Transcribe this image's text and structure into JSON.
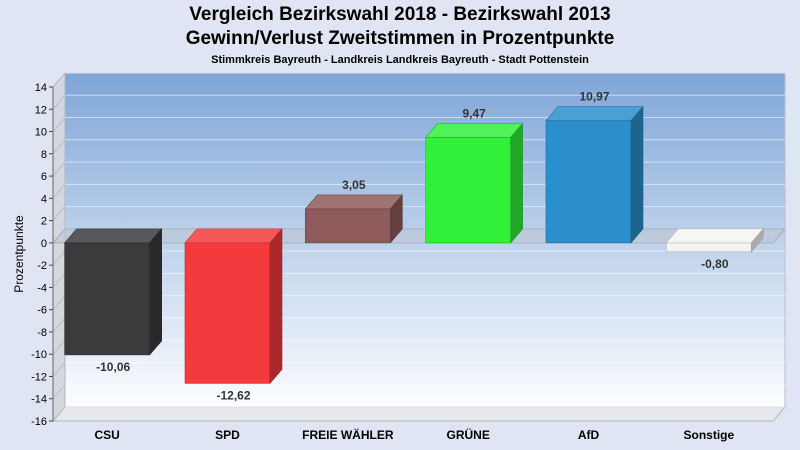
{
  "chart_data": {
    "type": "bar",
    "title": "Vergleich Bezirkswahl 2018 - Bezirkswahl 2013",
    "subtitle": "Gewinn/Verlust Zweitstimmen in Prozentpunkte",
    "subsubtitle": "Stimmkreis Bayreuth - Landkreis Landkreis Bayreuth - Stadt Pottenstein",
    "ylabel": "Prozentpunkte",
    "xlabel": "",
    "ylim": [
      -16,
      14
    ],
    "yticks": [
      14,
      12,
      10,
      8,
      6,
      4,
      2,
      0,
      -2,
      -4,
      -6,
      -8,
      -10,
      -12,
      -14,
      -16
    ],
    "categories": [
      "CSU",
      "SPD",
      "FREIE WÄHLER",
      "GRÜNE",
      "AfD",
      "Sonstige"
    ],
    "values": [
      -10.06,
      -12.62,
      3.05,
      9.47,
      10.97,
      -0.8
    ],
    "value_labels": [
      "-10,06",
      "-12,62",
      "3,05",
      "9,47",
      "10,97",
      "-0,80"
    ],
    "colors": [
      "#3a3b3d",
      "#f43a3d",
      "#8e5a5b",
      "#30f03a",
      "#2a8fcc",
      "#f4f4f4"
    ],
    "grid": true
  }
}
